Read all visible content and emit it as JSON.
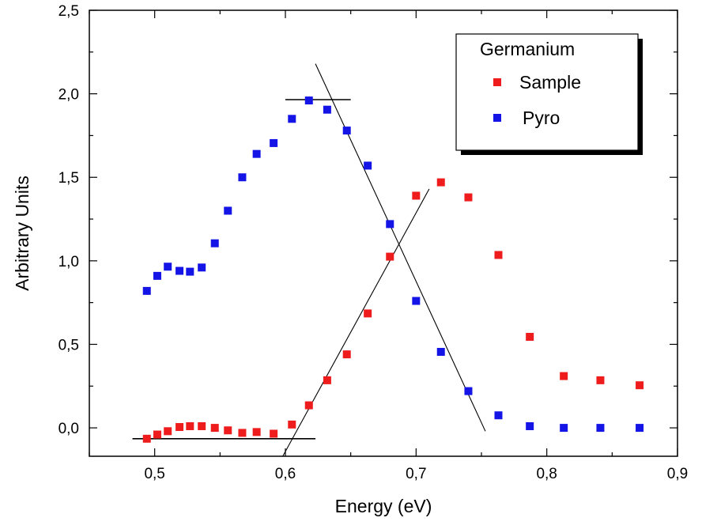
{
  "chart_data": {
    "type": "scatter",
    "title": "",
    "xlabel": "Energy (eV)",
    "ylabel": "Arbitrary Units",
    "xlim": [
      0.45,
      0.9
    ],
    "ylim": [
      -0.17,
      2.5
    ],
    "xticks": [
      0.5,
      0.6,
      0.7,
      0.8,
      0.9
    ],
    "xtick_labels": [
      "0,5",
      "0,6",
      "0,7",
      "0,8",
      "0,9"
    ],
    "yticks": [
      0.0,
      0.5,
      1.0,
      1.5,
      2.0,
      2.5
    ],
    "ytick_labels": [
      "0,0",
      "0,5",
      "1,0",
      "1,5",
      "2,0",
      "2,5"
    ],
    "grid": false,
    "legend": {
      "title": "Germanium",
      "placement": "top-right",
      "has_shadow": true
    },
    "series": [
      {
        "name": "Sample",
        "color": "#ee1c1c",
        "marker": "square",
        "points": [
          [
            0.494,
            -0.065
          ],
          [
            0.502,
            -0.04
          ],
          [
            0.51,
            -0.02
          ],
          [
            0.519,
            0.005
          ],
          [
            0.527,
            0.01
          ],
          [
            0.536,
            0.01
          ],
          [
            0.546,
            0.0
          ],
          [
            0.556,
            -0.015
          ],
          [
            0.567,
            -0.03
          ],
          [
            0.578,
            -0.025
          ],
          [
            0.591,
            -0.035
          ],
          [
            0.605,
            0.02
          ],
          [
            0.618,
            0.135
          ],
          [
            0.632,
            0.285
          ],
          [
            0.647,
            0.44
          ],
          [
            0.663,
            0.685
          ],
          [
            0.68,
            1.025
          ],
          [
            0.7,
            1.39
          ],
          [
            0.719,
            1.47
          ],
          [
            0.74,
            1.38
          ],
          [
            0.763,
            1.035
          ],
          [
            0.787,
            0.545
          ],
          [
            0.813,
            0.31
          ],
          [
            0.841,
            0.285
          ],
          [
            0.871,
            0.255
          ]
        ]
      },
      {
        "name": "Pyro",
        "color": "#1414e6",
        "marker": "square",
        "points": [
          [
            0.494,
            0.82
          ],
          [
            0.502,
            0.91
          ],
          [
            0.51,
            0.965
          ],
          [
            0.519,
            0.94
          ],
          [
            0.527,
            0.935
          ],
          [
            0.536,
            0.96
          ],
          [
            0.546,
            1.105
          ],
          [
            0.556,
            1.3
          ],
          [
            0.567,
            1.5
          ],
          [
            0.578,
            1.64
          ],
          [
            0.591,
            1.705
          ],
          [
            0.605,
            1.85
          ],
          [
            0.618,
            1.96
          ],
          [
            0.632,
            1.905
          ],
          [
            0.647,
            1.78
          ],
          [
            0.663,
            1.57
          ],
          [
            0.68,
            1.22
          ],
          [
            0.7,
            0.76
          ],
          [
            0.719,
            0.455
          ],
          [
            0.74,
            0.22
          ],
          [
            0.763,
            0.075
          ],
          [
            0.787,
            0.01
          ],
          [
            0.813,
            0.0
          ],
          [
            0.841,
            0.0
          ],
          [
            0.871,
            0.0
          ]
        ]
      }
    ],
    "annotation_lines": [
      {
        "name": "sample-baseline",
        "x": [
          0.483,
          0.623
        ],
        "y": [
          -0.065,
          -0.065
        ]
      },
      {
        "name": "sample-rising-fit",
        "x": [
          0.598,
          0.71
        ],
        "y": [
          -0.17,
          1.43
        ]
      },
      {
        "name": "pyro-plateau",
        "x": [
          0.6,
          0.65
        ],
        "y": [
          1.965,
          1.965
        ]
      },
      {
        "name": "pyro-falling-fit",
        "x": [
          0.623,
          0.753
        ],
        "y": [
          2.18,
          -0.02
        ]
      }
    ]
  }
}
